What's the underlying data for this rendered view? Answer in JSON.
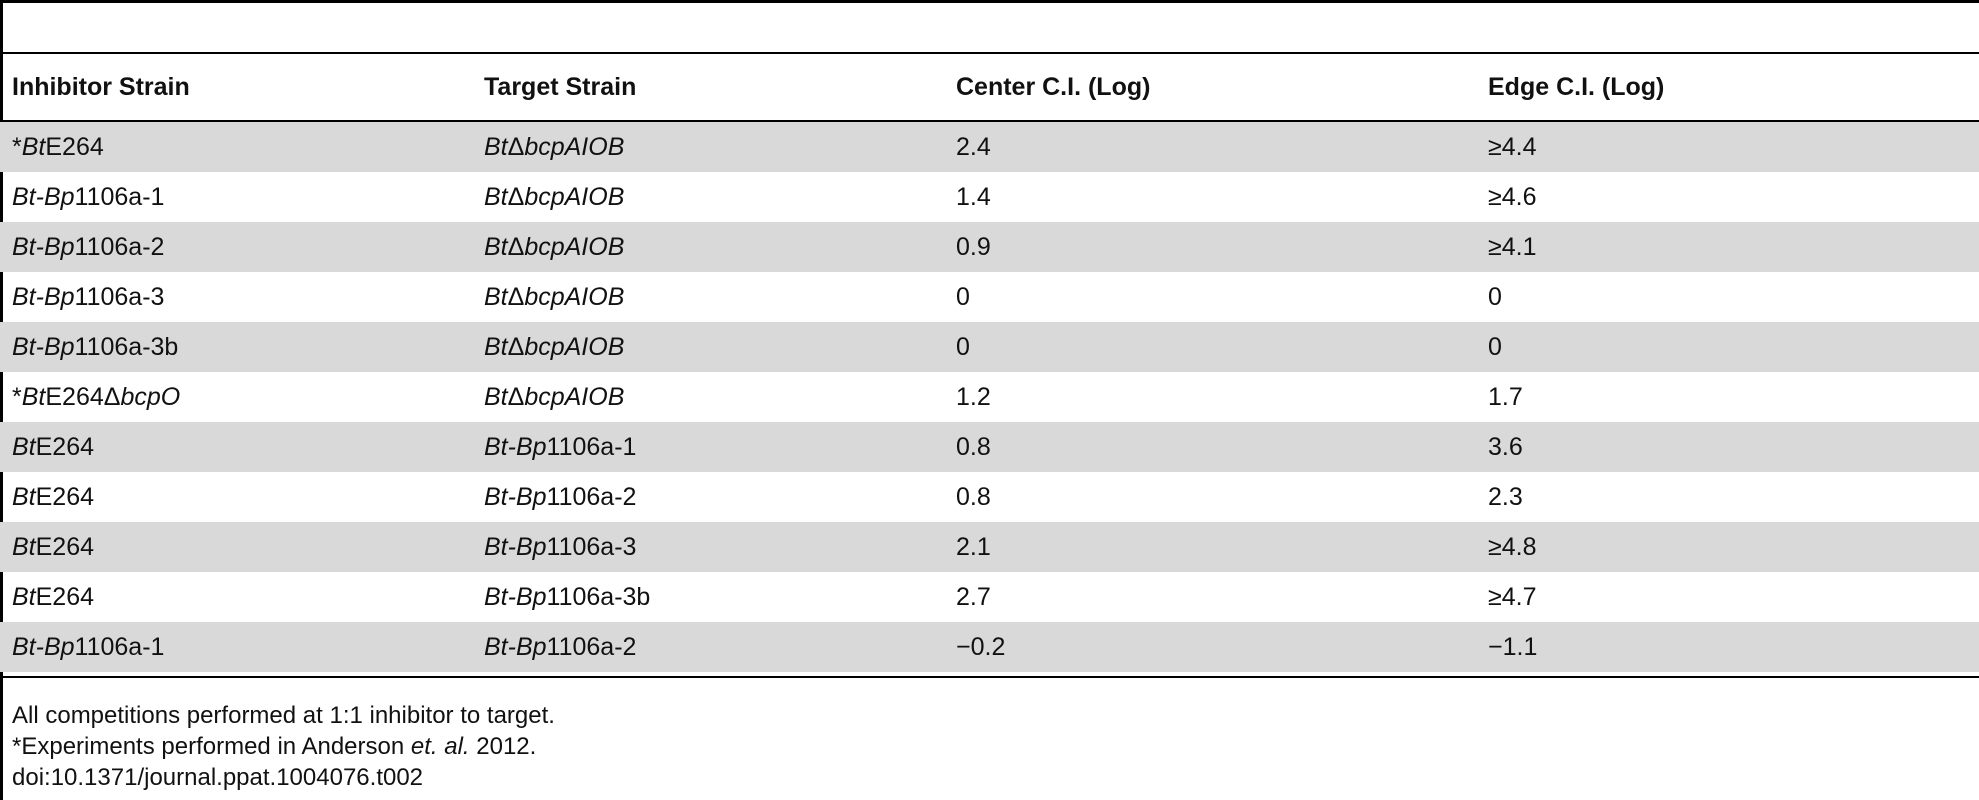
{
  "table": {
    "headers": [
      "Inhibitor Strain",
      "Target Strain",
      "Center C.I. (Log)",
      "Edge C.I. (Log)"
    ],
    "rows": [
      {
        "inhibitor": [
          [
            "",
            "*"
          ],
          [
            "i",
            "Bt"
          ],
          [
            "",
            "E264"
          ]
        ],
        "target": [
          [
            "i",
            "Bt"
          ],
          [
            "",
            "Δ"
          ],
          [
            "i",
            "bcpAIOB"
          ]
        ],
        "center": "2.4",
        "edge": "≥4.4"
      },
      {
        "inhibitor": [
          [
            "i",
            "Bt-Bp"
          ],
          [
            "",
            "1106a-1"
          ]
        ],
        "target": [
          [
            "i",
            "Bt"
          ],
          [
            "",
            "Δ"
          ],
          [
            "i",
            "bcpAIOB"
          ]
        ],
        "center": "1.4",
        "edge": "≥4.6"
      },
      {
        "inhibitor": [
          [
            "i",
            "Bt-Bp"
          ],
          [
            "",
            "1106a-2"
          ]
        ],
        "target": [
          [
            "i",
            "Bt"
          ],
          [
            "",
            "Δ"
          ],
          [
            "i",
            "bcpAIOB"
          ]
        ],
        "center": "0.9",
        "edge": "≥4.1"
      },
      {
        "inhibitor": [
          [
            "i",
            "Bt-Bp"
          ],
          [
            "",
            "1106a-3"
          ]
        ],
        "target": [
          [
            "i",
            "Bt"
          ],
          [
            "",
            "Δ"
          ],
          [
            "i",
            "bcpAIOB"
          ]
        ],
        "center": "0",
        "edge": "0"
      },
      {
        "inhibitor": [
          [
            "i",
            "Bt-Bp"
          ],
          [
            "",
            "1106a-3b"
          ]
        ],
        "target": [
          [
            "i",
            "Bt"
          ],
          [
            "",
            "Δ"
          ],
          [
            "i",
            "bcpAIOB"
          ]
        ],
        "center": "0",
        "edge": "0"
      },
      {
        "inhibitor": [
          [
            "",
            "*"
          ],
          [
            "i",
            "Bt"
          ],
          [
            "",
            "E264Δ"
          ],
          [
            "i",
            "bcpO"
          ]
        ],
        "target": [
          [
            "i",
            "Bt"
          ],
          [
            "",
            "Δ"
          ],
          [
            "i",
            "bcpAIOB"
          ]
        ],
        "center": "1.2",
        "edge": "1.7"
      },
      {
        "inhibitor": [
          [
            "i",
            "Bt"
          ],
          [
            "",
            "E264"
          ]
        ],
        "target": [
          [
            "i",
            "Bt-Bp"
          ],
          [
            "",
            "1106a-1"
          ]
        ],
        "center": "0.8",
        "edge": "3.6"
      },
      {
        "inhibitor": [
          [
            "i",
            "Bt"
          ],
          [
            "",
            "E264"
          ]
        ],
        "target": [
          [
            "i",
            "Bt-Bp"
          ],
          [
            "",
            "1106a-2"
          ]
        ],
        "center": "0.8",
        "edge": "2.3"
      },
      {
        "inhibitor": [
          [
            "i",
            "Bt"
          ],
          [
            "",
            "E264"
          ]
        ],
        "target": [
          [
            "i",
            "Bt-Bp"
          ],
          [
            "",
            "1106a-3"
          ]
        ],
        "center": "2.1",
        "edge": "≥4.8"
      },
      {
        "inhibitor": [
          [
            "i",
            "Bt"
          ],
          [
            "",
            "E264"
          ]
        ],
        "target": [
          [
            "i",
            "Bt-Bp"
          ],
          [
            "",
            "1106a-3b"
          ]
        ],
        "center": "2.7",
        "edge": "≥4.7"
      },
      {
        "inhibitor": [
          [
            "i",
            "Bt-Bp"
          ],
          [
            "",
            "1106a-1"
          ]
        ],
        "target": [
          [
            "i",
            "Bt-Bp"
          ],
          [
            "",
            "1106a-2"
          ]
        ],
        "center": "−0.2",
        "edge": "−1.1"
      }
    ]
  },
  "footnotes": {
    "line1": "All competitions performed at 1:1 inhibitor to target.",
    "line2_pre": "*Experiments performed in Anderson ",
    "line2_italic": "et. al.",
    "line2_post": " 2012.",
    "doi": "doi:10.1371/journal.ppat.1004076.t002"
  },
  "colors": {
    "row_shade": "#d9d9d9",
    "rule": "#000000",
    "text": "#111111"
  }
}
